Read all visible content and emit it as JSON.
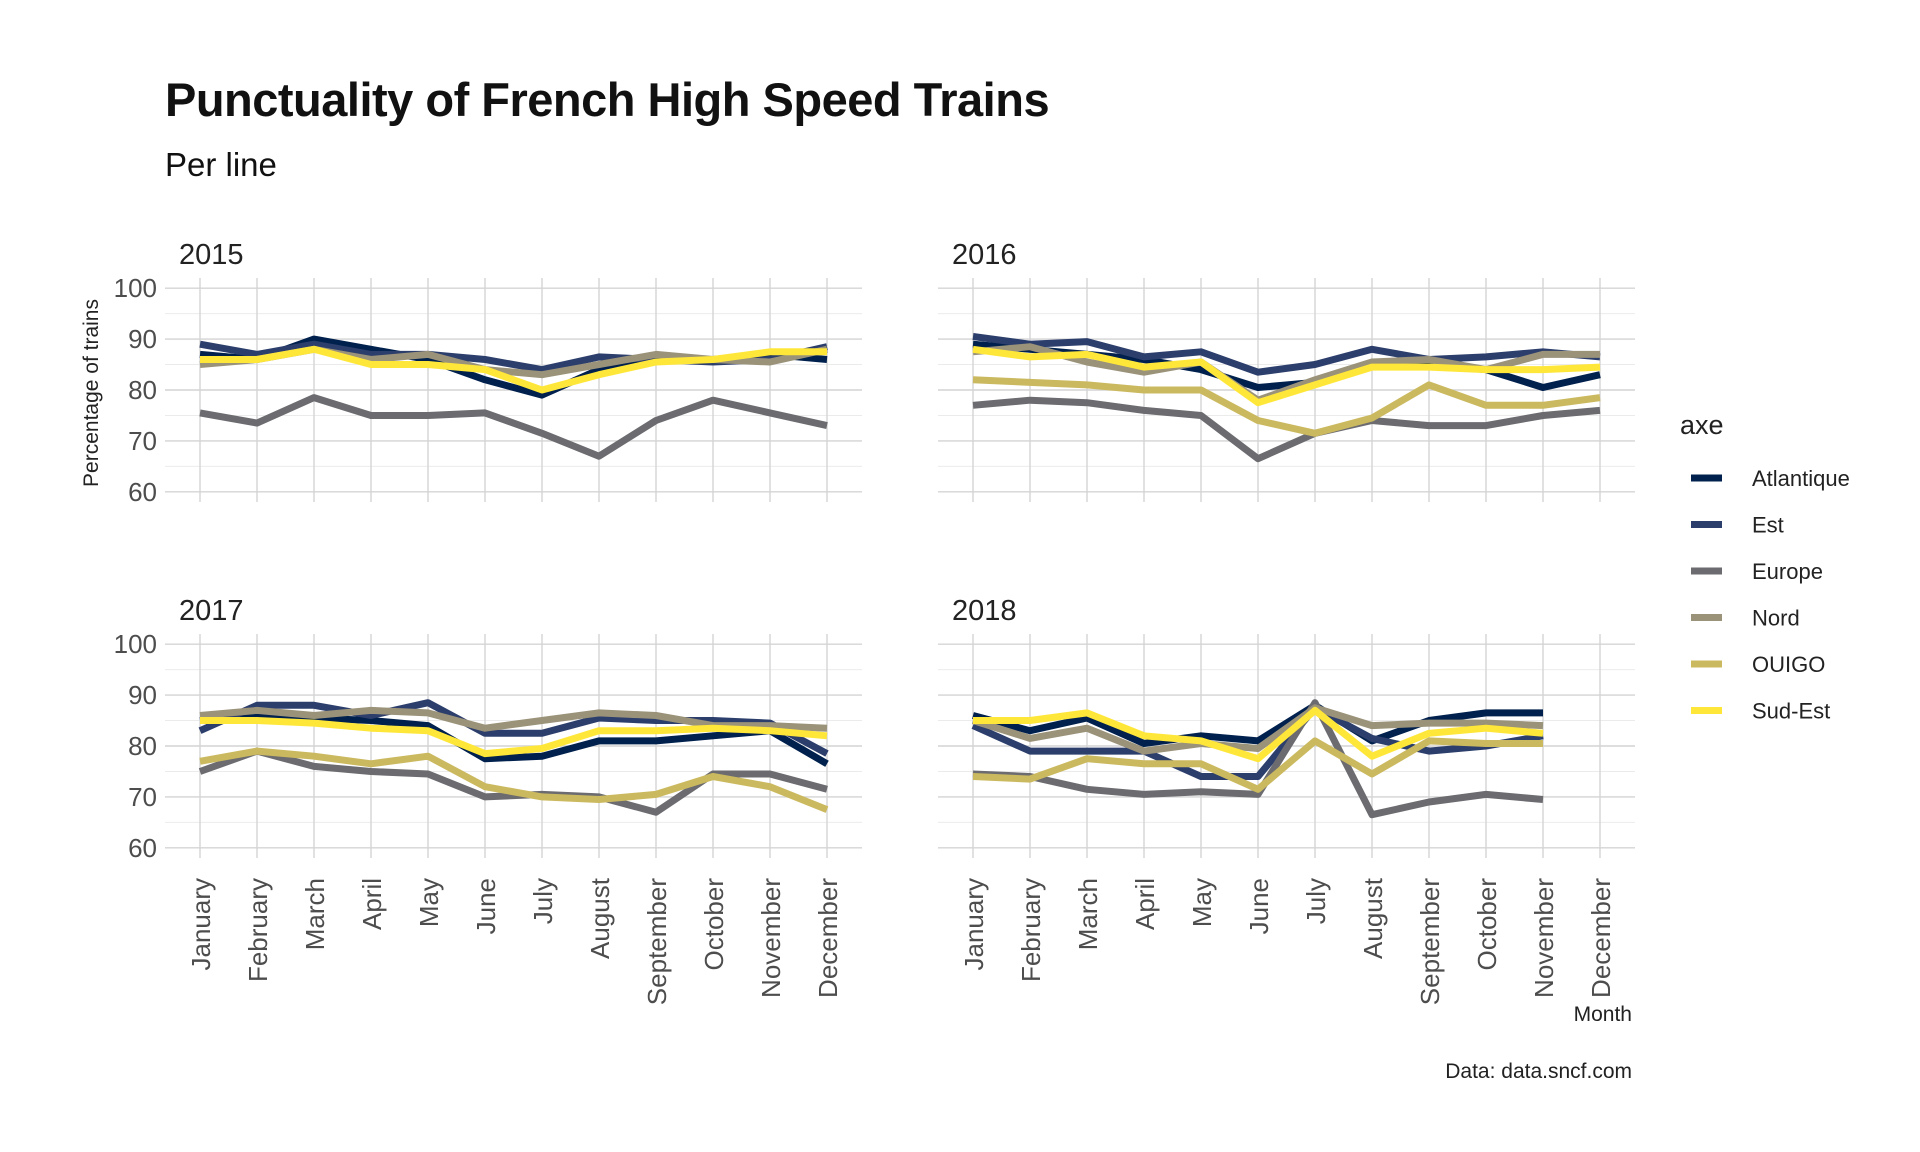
{
  "title": "Punctuality of French High Speed Trains",
  "subtitle": "Per line",
  "caption": "Data: data.sncf.com",
  "legend": {
    "title": "axe",
    "entries": [
      "Atlantique",
      "Est",
      "Europe",
      "Nord",
      "OUIGO",
      "Sud-Est"
    ]
  },
  "colors": {
    "Atlantique": "#00204d",
    "Est": "#2c3e6b",
    "Europe": "#6b6b70",
    "Nord": "#9a9279",
    "OUIGO": "#cbb95f",
    "Sud-Est": "#ffe73a"
  },
  "chart_data": {
    "type": "line",
    "title": "Punctuality of French High Speed Trains",
    "subtitle": "Per line",
    "xlabel": "Month",
    "ylabel": "Percentage of trains",
    "ylim": [
      58,
      102
    ],
    "yticks": [
      60,
      70,
      80,
      90,
      100
    ],
    "grid": true,
    "legend_position": "right",
    "categories": [
      "January",
      "February",
      "March",
      "April",
      "May",
      "June",
      "July",
      "August",
      "September",
      "October",
      "November",
      "December"
    ],
    "facets": [
      {
        "label": "2015",
        "series": [
          {
            "name": "Atlantique",
            "values": [
              87,
              86,
              90,
              88,
              86,
              82,
              79,
              84,
              86,
              86,
              87,
              86
            ]
          },
          {
            "name": "Est",
            "values": [
              89,
              87,
              89,
              87,
              87,
              86,
              84,
              86.5,
              86,
              85.5,
              86,
              88.5
            ]
          },
          {
            "name": "Europe",
            "values": [
              75.5,
              73.5,
              78.5,
              75,
              75,
              75.5,
              71.5,
              67,
              74,
              78,
              75.5,
              73
            ]
          },
          {
            "name": "Nord",
            "values": [
              85,
              86,
              88,
              86,
              87,
              84,
              83,
              85,
              87,
              86,
              85.5,
              88
            ]
          },
          {
            "name": "OUIGO",
            "values": [
              null,
              null,
              null,
              null,
              null,
              null,
              null,
              null,
              null,
              null,
              null,
              null
            ]
          },
          {
            "name": "Sud-Est",
            "values": [
              86,
              86,
              88,
              85,
              85,
              84,
              80,
              83,
              85.5,
              86,
              87.5,
              87.5
            ]
          }
        ]
      },
      {
        "label": "2016",
        "series": [
          {
            "name": "Atlantique",
            "values": [
              89,
              88,
              87,
              86,
              84,
              80.5,
              81.5,
              85,
              85,
              84,
              80.5,
              83
            ]
          },
          {
            "name": "Est",
            "values": [
              90.5,
              89,
              89.5,
              86.5,
              87.5,
              83.5,
              85,
              88,
              86,
              86.5,
              87.5,
              86.5
            ]
          },
          {
            "name": "Europe",
            "values": [
              77,
              78,
              77.5,
              76,
              75,
              66.5,
              71.5,
              74,
              73,
              73,
              75,
              76
            ]
          },
          {
            "name": "Nord",
            "values": [
              87.5,
              88.5,
              85.5,
              83.5,
              85.5,
              78,
              82,
              85.5,
              86,
              84,
              87,
              87
            ]
          },
          {
            "name": "OUIGO",
            "values": [
              82,
              81.5,
              81,
              80,
              80,
              74,
              71.5,
              74.5,
              81,
              77,
              77,
              78.5
            ]
          },
          {
            "name": "Sud-Est",
            "values": [
              88,
              86.5,
              87,
              84.5,
              85.5,
              77.5,
              81,
              84.5,
              84.5,
              84,
              84,
              84.5
            ]
          }
        ]
      },
      {
        "label": "2017",
        "series": [
          {
            "name": "Atlantique",
            "values": [
              85,
              86,
              85.5,
              85,
              84,
              77.5,
              78,
              81,
              81,
              82,
              83,
              76.5
            ]
          },
          {
            "name": "Est",
            "values": [
              83,
              88,
              88,
              86,
              88.5,
              82.5,
              82.5,
              85.5,
              85,
              85,
              84.5,
              78.5
            ]
          },
          {
            "name": "Europe",
            "values": [
              75,
              79,
              76,
              75,
              74.5,
              70,
              70.5,
              70,
              67,
              74.5,
              74.5,
              71.5
            ]
          },
          {
            "name": "Nord",
            "values": [
              86,
              87,
              86,
              87,
              86.5,
              83.5,
              85,
              86.5,
              86,
              84,
              84,
              83.5
            ]
          },
          {
            "name": "OUIGO",
            "values": [
              77,
              79,
              78,
              76.5,
              78,
              72,
              70,
              69.5,
              70.5,
              74,
              72,
              67.5
            ]
          },
          {
            "name": "Sud-Est",
            "values": [
              85,
              85,
              84.5,
              83.5,
              83,
              78.5,
              79.5,
              83,
              83,
              83.5,
              83,
              82
            ]
          }
        ]
      },
      {
        "label": "2018",
        "series": [
          {
            "name": "Atlantique",
            "values": [
              86,
              83,
              85.5,
              80.5,
              82,
              81,
              88,
              81,
              85,
              86.5,
              86.5,
              null
            ]
          },
          {
            "name": "Est",
            "values": [
              84,
              79,
              79,
              79,
              74,
              74,
              87.5,
              81.5,
              79,
              80,
              82,
              null
            ]
          },
          {
            "name": "Europe",
            "values": [
              74.5,
              74,
              71.5,
              70.5,
              71,
              70.5,
              88.5,
              66.5,
              69,
              70.5,
              69.5,
              null
            ]
          },
          {
            "name": "Nord",
            "values": [
              85,
              81.5,
              83.5,
              79,
              80.5,
              79.5,
              87.5,
              84,
              84.5,
              84.5,
              84,
              null
            ]
          },
          {
            "name": "OUIGO",
            "values": [
              74,
              73.5,
              77.5,
              76.5,
              76.5,
              71.5,
              81,
              74.5,
              81,
              80.5,
              80.5,
              null
            ]
          },
          {
            "name": "Sud-Est",
            "values": [
              85,
              85,
              86.5,
              82,
              81,
              77.5,
              87,
              78,
              82.5,
              83.5,
              82.5,
              null
            ]
          }
        ]
      }
    ]
  }
}
